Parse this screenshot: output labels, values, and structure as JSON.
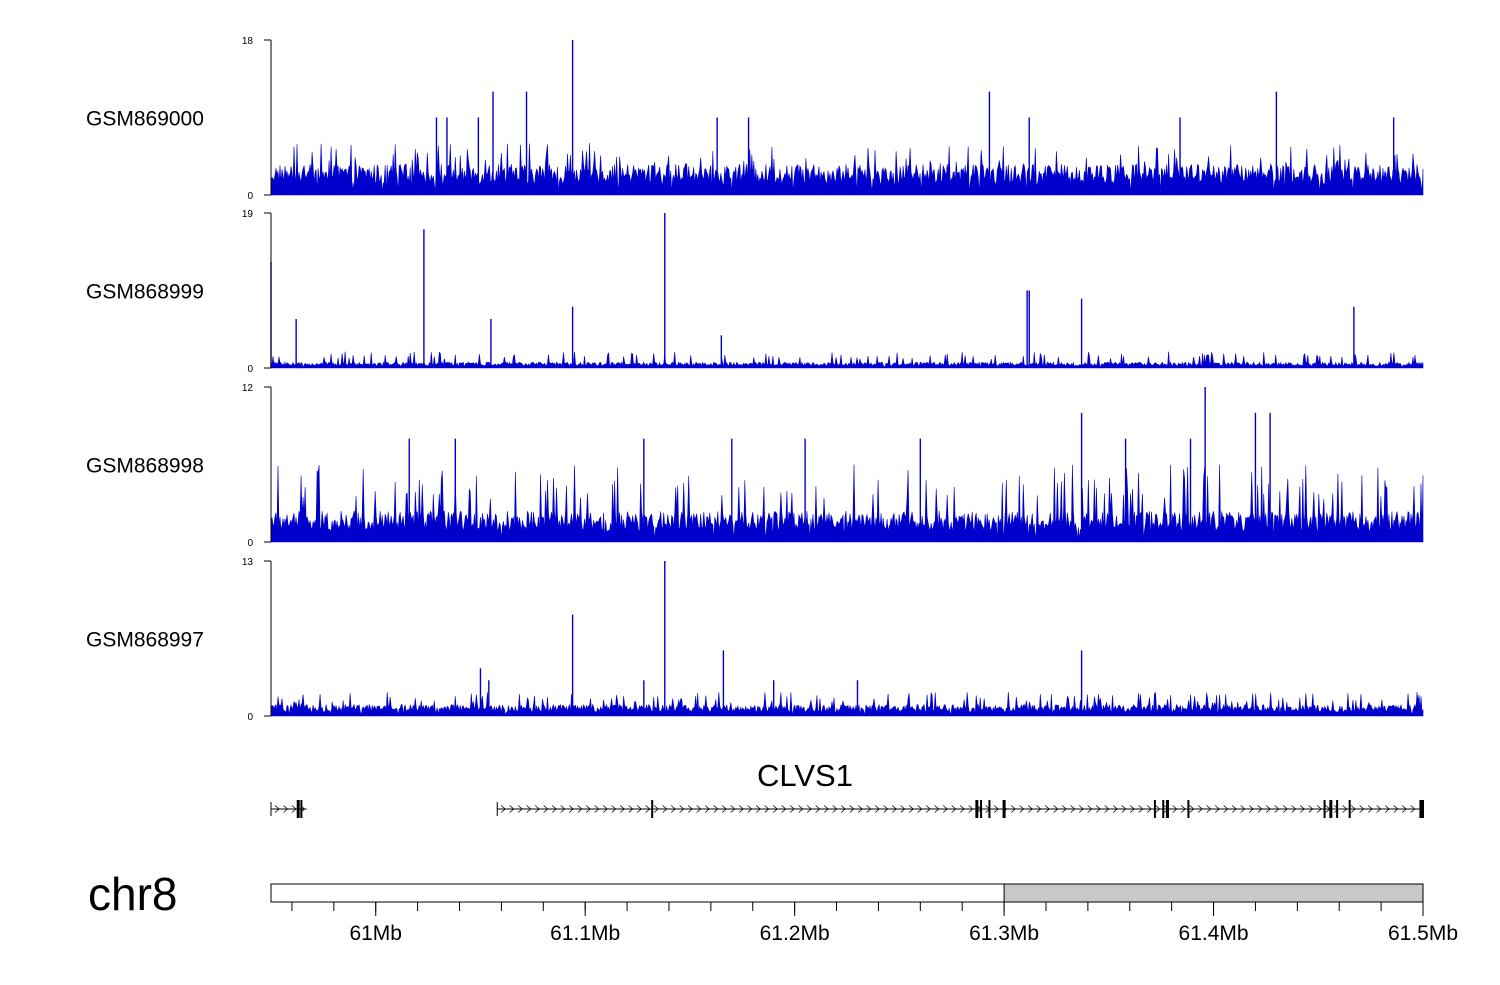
{
  "chart_data": {
    "type": "area",
    "title": "",
    "genome": {
      "chromosome": "chr8",
      "range_mb": [
        60.95,
        61.5
      ],
      "axis_ticks": [
        {
          "value": 61.0,
          "label": "61Mb"
        },
        {
          "value": 61.1,
          "label": "61.1Mb"
        },
        {
          "value": 61.2,
          "label": "61.2Mb"
        },
        {
          "value": 61.3,
          "label": "61.3Mb"
        },
        {
          "value": 61.4,
          "label": "61.4Mb"
        },
        {
          "value": 61.5,
          "label": "61.5Mb"
        }
      ],
      "highlight_region_mb": [
        61.3,
        61.5
      ]
    },
    "tracks": [
      {
        "name": "GSM869000",
        "ylim": [
          0,
          18
        ],
        "yticks": [
          "18",
          "0"
        ],
        "color": "#0000cc",
        "baseline": 3,
        "noise_max": 6,
        "peaks": [
          {
            "x": 61.094,
            "y": 18
          },
          {
            "x": 61.072,
            "y": 12
          },
          {
            "x": 61.056,
            "y": 12
          },
          {
            "x": 61.293,
            "y": 12
          },
          {
            "x": 61.43,
            "y": 12
          },
          {
            "x": 61.029,
            "y": 9
          },
          {
            "x": 61.034,
            "y": 9
          },
          {
            "x": 61.049,
            "y": 9
          },
          {
            "x": 61.163,
            "y": 9
          },
          {
            "x": 61.178,
            "y": 9
          },
          {
            "x": 61.312,
            "y": 9
          },
          {
            "x": 61.384,
            "y": 9
          },
          {
            "x": 61.486,
            "y": 9
          }
        ]
      },
      {
        "name": "GSM868999",
        "ylim": [
          0,
          19
        ],
        "yticks": [
          "19",
          "0"
        ],
        "color": "#0000cc",
        "baseline": 0.6,
        "noise_max": 2,
        "peaks": [
          {
            "x": 61.138,
            "y": 19
          },
          {
            "x": 61.023,
            "y": 17
          },
          {
            "x": 60.95,
            "y": 13
          },
          {
            "x": 61.311,
            "y": 9.5
          },
          {
            "x": 61.312,
            "y": 9.5
          },
          {
            "x": 61.337,
            "y": 8.5
          },
          {
            "x": 61.094,
            "y": 7.5
          },
          {
            "x": 61.467,
            "y": 7.5
          },
          {
            "x": 61.055,
            "y": 6
          },
          {
            "x": 60.962,
            "y": 6
          },
          {
            "x": 61.165,
            "y": 4
          }
        ]
      },
      {
        "name": "GSM868998",
        "ylim": [
          0,
          12
        ],
        "yticks": [
          "12",
          "0"
        ],
        "color": "#0000cc",
        "baseline": 2,
        "noise_max": 6,
        "peaks": [
          {
            "x": 61.396,
            "y": 12
          },
          {
            "x": 61.337,
            "y": 10
          },
          {
            "x": 61.42,
            "y": 10
          },
          {
            "x": 61.427,
            "y": 10
          },
          {
            "x": 61.389,
            "y": 8
          },
          {
            "x": 61.016,
            "y": 8
          },
          {
            "x": 61.038,
            "y": 8
          },
          {
            "x": 61.128,
            "y": 8
          },
          {
            "x": 61.17,
            "y": 8
          },
          {
            "x": 61.205,
            "y": 8
          },
          {
            "x": 61.26,
            "y": 8
          },
          {
            "x": 61.358,
            "y": 8
          }
        ]
      },
      {
        "name": "GSM868997",
        "ylim": [
          0,
          13
        ],
        "yticks": [
          "13",
          "0"
        ],
        "color": "#0000cc",
        "baseline": 0.8,
        "noise_max": 2,
        "peaks": [
          {
            "x": 61.138,
            "y": 13
          },
          {
            "x": 61.094,
            "y": 8.5
          },
          {
            "x": 61.166,
            "y": 5.5
          },
          {
            "x": 61.337,
            "y": 5.5
          },
          {
            "x": 61.05,
            "y": 4
          },
          {
            "x": 61.054,
            "y": 3
          },
          {
            "x": 61.128,
            "y": 3
          },
          {
            "x": 61.19,
            "y": 3
          },
          {
            "x": 61.23,
            "y": 3
          }
        ]
      }
    ],
    "gene": {
      "name": "CLVS1",
      "segments_mb": [
        [
          60.95,
          60.967
        ],
        [
          61.058,
          61.5
        ]
      ],
      "exons_mb": [
        60.963,
        60.9645,
        61.132,
        61.287,
        61.289,
        61.293,
        61.3,
        61.372,
        61.376,
        61.378,
        61.388,
        61.453,
        61.456,
        61.459,
        61.465,
        61.499,
        61.5
      ]
    }
  }
}
